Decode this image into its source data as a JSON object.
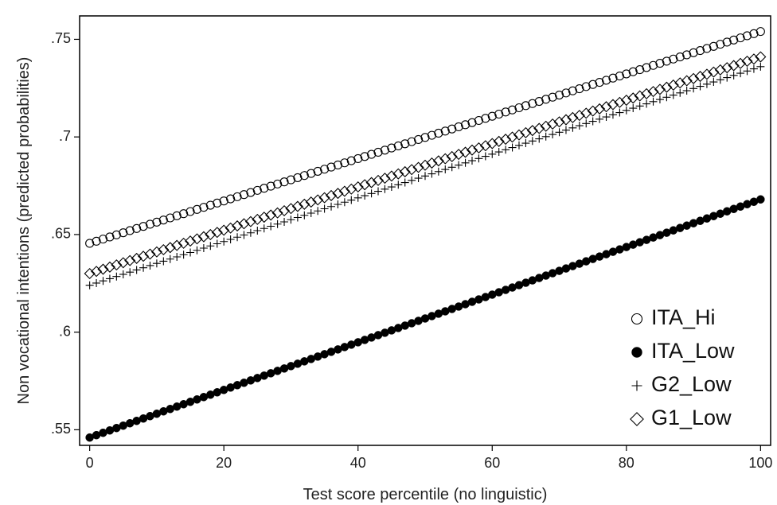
{
  "chart_data": {
    "type": "scatter",
    "title": "",
    "xlabel": "Test score percentile (no linguistic)",
    "ylabel": "Non vocational intentions (predicted probabilities)",
    "xlim": [
      -1.5,
      101.5
    ],
    "ylim": [
      0.542,
      0.762
    ],
    "x_ticks": [
      0,
      20,
      40,
      60,
      80,
      100
    ],
    "x_tick_labels": [
      "0",
      "20",
      "40",
      "60",
      "80",
      "100"
    ],
    "y_ticks": [
      0.55,
      0.6,
      0.65,
      0.7,
      0.75
    ],
    "y_tick_labels": [
      ".55",
      ".6",
      ".65",
      ".7",
      ".75"
    ],
    "grid": false,
    "legend_position": "bottom-right",
    "x_range": {
      "start": 0,
      "end": 100,
      "step": 1
    },
    "series": [
      {
        "name": "ITA_Hi",
        "marker": "hollow-circle",
        "y_start": 0.6455,
        "y_end": 0.754
      },
      {
        "name": "ITA_Low",
        "marker": "filled-circle",
        "y_start": 0.546,
        "y_end": 0.668
      },
      {
        "name": "G2_Low",
        "marker": "plus",
        "y_start": 0.624,
        "y_end": 0.736
      },
      {
        "name": "G1_Low",
        "marker": "hollow-diamond",
        "y_start": 0.63,
        "y_end": 0.741
      }
    ]
  }
}
